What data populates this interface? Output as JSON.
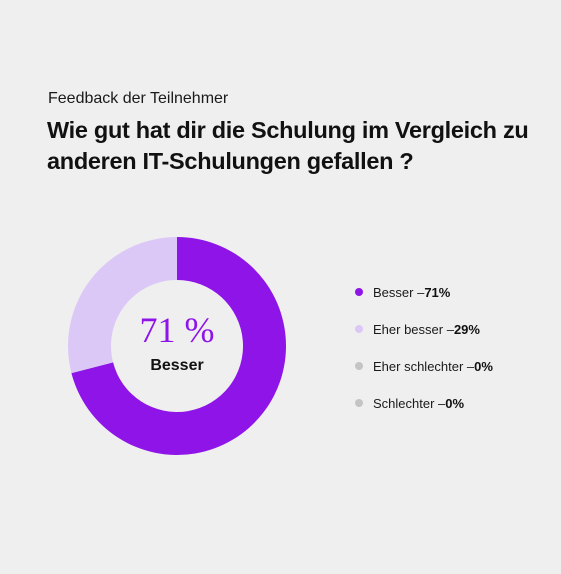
{
  "header": {
    "subtitle": "Feedback der Teilnehmer",
    "title": "Wie gut hat dir die Schulung im Vergleich zu anderen IT-Schulungen gefallen ?"
  },
  "center": {
    "value": "71 %",
    "label": "Besser"
  },
  "colors": {
    "background": "#efefef",
    "besser": "#8e14e8",
    "eher_besser": "#dcc8f7",
    "eher_schlechter": "#c4c4c4",
    "schlechter": "#c4c4c4",
    "center_value_text": "#8e14e8"
  },
  "legend": [
    {
      "label": "Besser – ",
      "value": "71%"
    },
    {
      "label": "Eher besser – ",
      "value": "29%"
    },
    {
      "label": "Eher schlechter – ",
      "value": "0%"
    },
    {
      "label": "Schlechter – ",
      "value": "0%"
    }
  ],
  "chart_data": {
    "type": "pie",
    "variant": "donut",
    "title": "Wie gut hat dir die Schulung im Vergleich zu anderen IT-Schulungen gefallen ?",
    "subtitle": "Feedback der Teilnehmer",
    "categories": [
      "Besser",
      "Eher besser",
      "Eher schlechter",
      "Schlechter"
    ],
    "values": [
      71,
      29,
      0,
      0
    ],
    "unit": "%",
    "colors": [
      "#8e14e8",
      "#dcc8f7",
      "#c4c4c4",
      "#c4c4c4"
    ],
    "legend_position": "right"
  }
}
